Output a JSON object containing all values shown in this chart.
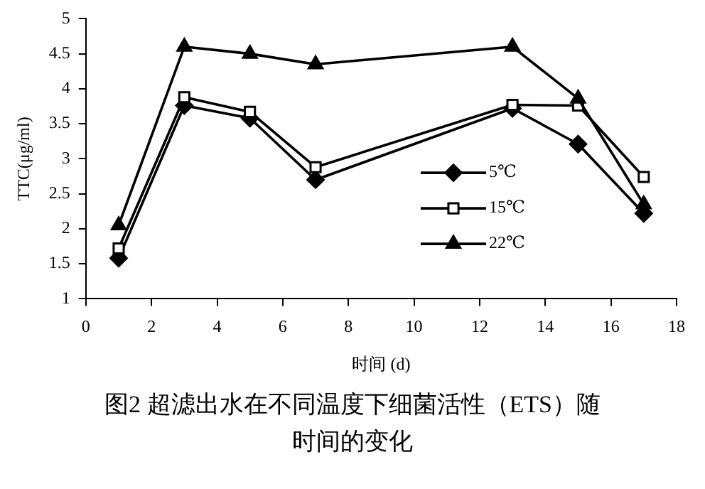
{
  "chart_data": {
    "type": "line",
    "title": "图2 超滤出水在不同温度下细菌活性（ETS）随时间的变化",
    "xlabel": "时间 (d)",
    "ylabel": "TTC(μg/ml)",
    "x": [
      1,
      3,
      5,
      7,
      13,
      15,
      17
    ],
    "series": [
      {
        "name": "5℃",
        "color": "#000000",
        "marker": "diamond",
        "values": [
          1.58,
          3.76,
          3.58,
          2.7,
          3.72,
          3.21,
          2.22
        ]
      },
      {
        "name": "15℃",
        "color": "#000000",
        "marker": "square",
        "values": [
          1.72,
          3.88,
          3.67,
          2.88,
          3.77,
          3.76,
          2.74
        ]
      },
      {
        "name": "22℃",
        "color": "#000000",
        "marker": "triangle",
        "values": [
          2.05,
          4.6,
          4.5,
          4.35,
          4.6,
          3.86,
          2.35
        ]
      }
    ],
    "xlim": [
      0,
      18
    ],
    "xticks": [
      0,
      2,
      4,
      6,
      8,
      10,
      12,
      14,
      16,
      18
    ],
    "ylim": [
      1,
      5
    ],
    "yticks": [
      1,
      1.5,
      2,
      2.5,
      3,
      3.5,
      4,
      4.5,
      5
    ],
    "grid": false,
    "legend": "right",
    "line_style": "solid"
  }
}
